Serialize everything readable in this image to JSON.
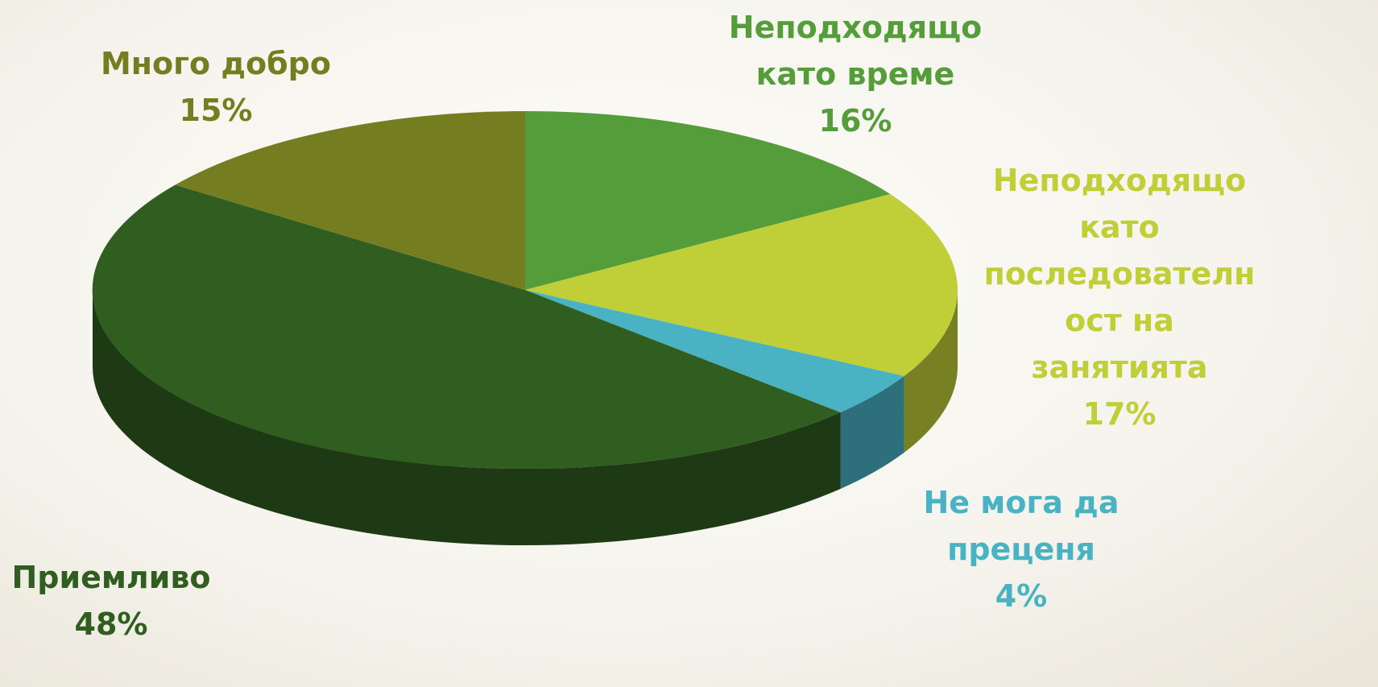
{
  "chart_data": {
    "type": "pie",
    "categories": [
      "Неподходящо като време",
      "Неподходящо като последователност на занятията",
      "Не мога да преценя",
      "Приемливо",
      "Много добро"
    ],
    "values": [
      16,
      17,
      4,
      48,
      15
    ],
    "value_labels": [
      "16%",
      "17%",
      "4%",
      "48%",
      "15%"
    ],
    "colors": [
      "#559c3a",
      "#c0ce38",
      "#49b3c4",
      "#305e20",
      "#757d21"
    ]
  }
}
